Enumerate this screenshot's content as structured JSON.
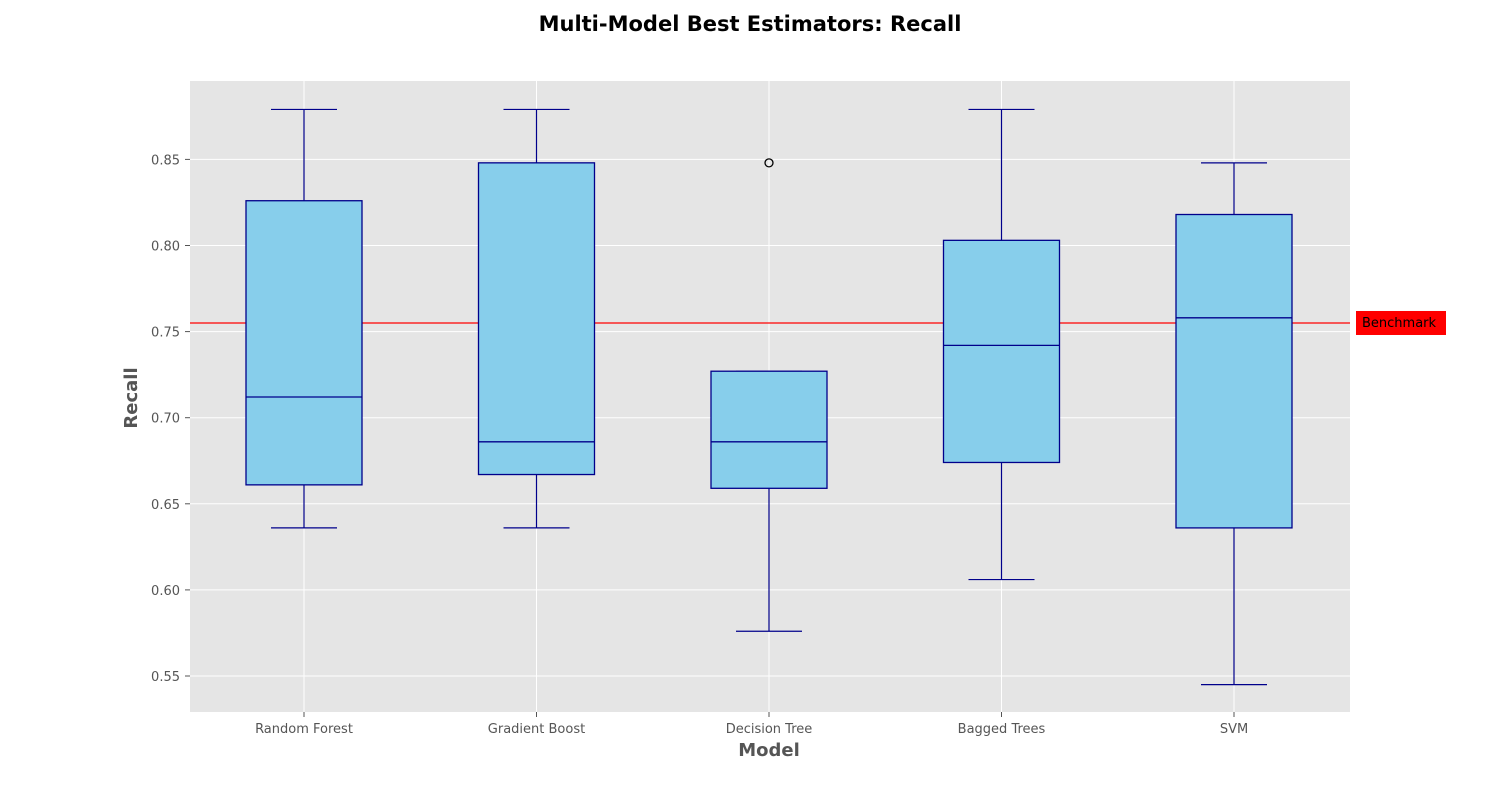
{
  "chart_data": {
    "type": "box",
    "title": "Multi-Model Best Estimators: Recall",
    "xlabel": "Model",
    "ylabel": "Recall",
    "ylim": [
      0.53,
      0.895
    ],
    "yticks": [
      0.55,
      0.6,
      0.65,
      0.7,
      0.75,
      0.8,
      0.85
    ],
    "ytick_labels": [
      "0.55",
      "0.60",
      "0.65",
      "0.70",
      "0.75",
      "0.80",
      "0.85"
    ],
    "grid": true,
    "categories": [
      "Random Forest",
      "Gradient Boost",
      "Decision Tree",
      "Bagged Trees",
      "SVM"
    ],
    "boxes": [
      {
        "category": "Random Forest",
        "whisker_low": 0.636,
        "q1": 0.661,
        "median": 0.712,
        "q3": 0.826,
        "whisker_high": 0.879,
        "outliers": []
      },
      {
        "category": "Gradient Boost",
        "whisker_low": 0.636,
        "q1": 0.667,
        "median": 0.686,
        "q3": 0.848,
        "whisker_high": 0.879,
        "outliers": []
      },
      {
        "category": "Decision Tree",
        "whisker_low": 0.576,
        "q1": 0.659,
        "median": 0.686,
        "q3": 0.727,
        "whisker_high": 0.727,
        "outliers": [
          0.848
        ]
      },
      {
        "category": "Bagged Trees",
        "whisker_low": 0.606,
        "q1": 0.674,
        "median": 0.742,
        "q3": 0.803,
        "whisker_high": 0.879,
        "outliers": []
      },
      {
        "category": "SVM",
        "whisker_low": 0.545,
        "q1": 0.636,
        "median": 0.758,
        "q3": 0.818,
        "whisker_high": 0.848,
        "outliers": []
      }
    ],
    "benchmark": {
      "label": "Benchmark",
      "value": 0.755,
      "color": "#ff0000"
    },
    "colors": {
      "box_fill": "#87ceeb",
      "box_edge": "#00008b",
      "plot_background": "#e5e5e5",
      "grid": "#ffffff",
      "benchmark_line": "#ff0000"
    }
  }
}
